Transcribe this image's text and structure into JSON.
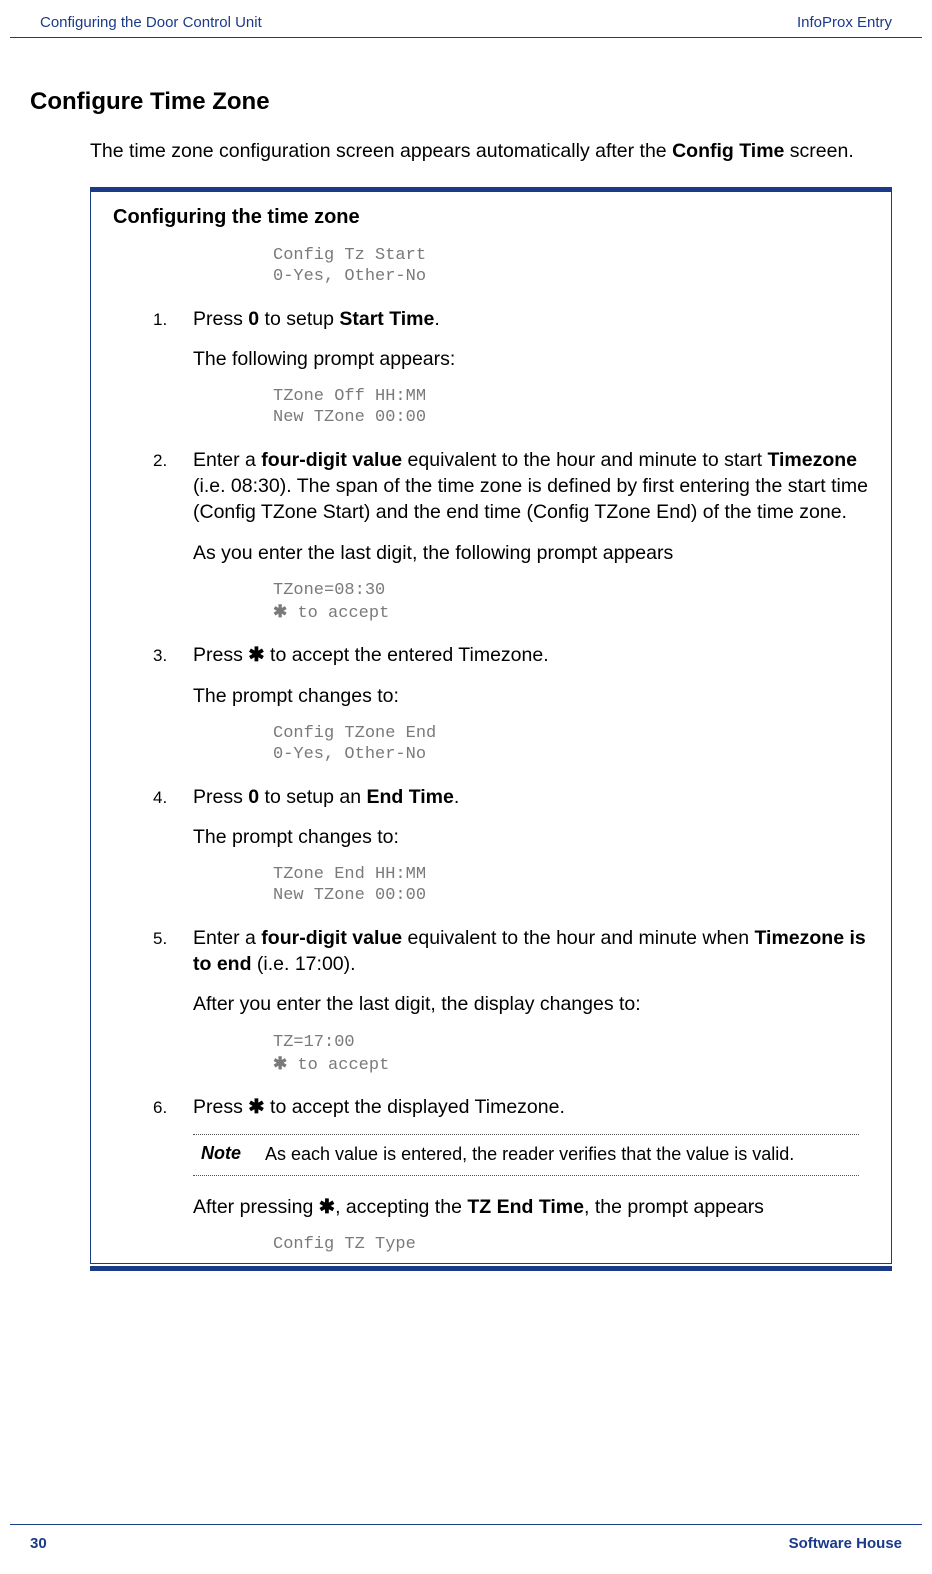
{
  "header": {
    "left": "Configuring the Door Control Unit",
    "right": "InfoProx Entry"
  },
  "heading": "Configure Time Zone",
  "intro_pre": "The time zone configuration screen appears automatically after the ",
  "intro_bold": "Config Time",
  "intro_post": " screen.",
  "box_title": "Configuring the time zone",
  "code_top_l1": "Config Tz Start",
  "code_top_l2": "0-Yes, Other-No",
  "steps": {
    "s1": {
      "num": "1.",
      "text_pre": "Press ",
      "bold1": "0",
      "text_mid": " to setup ",
      "bold2": "Start Time",
      "text_post": ".",
      "follow": "The following prompt appears:",
      "code_l1": "TZone Off HH:MM",
      "code_l2": "New TZone 00:00"
    },
    "s2": {
      "num": "2.",
      "p1_pre": "Enter a ",
      "p1_b1": "four-digit value",
      "p1_mid": " equivalent to the hour and minute to start ",
      "p1_b2": "Timezone",
      "p1_post": " (i.e. 08:30). The span of the time zone is defined by first entering the start time (Config TZone Start) and the end time (Config TZone End) of the time zone.",
      "follow": "As you enter the last digit, the following prompt appears",
      "code_l1": "TZone=08:30",
      "code_l2_post": " to accept"
    },
    "s3": {
      "num": "3.",
      "text_pre": "Press ",
      "text_post": " to accept the entered Timezone.",
      "follow": "The prompt changes to:",
      "code_l1": "Config TZone End",
      "code_l2": "0-Yes, Other-No"
    },
    "s4": {
      "num": "4.",
      "text_pre": "Press ",
      "bold1": "0",
      "text_mid": " to setup an ",
      "bold2": "End Time",
      "text_post": ".",
      "follow": "The prompt changes to:",
      "code_l1": "TZone End HH:MM",
      "code_l2": "New TZone 00:00"
    },
    "s5": {
      "num": "5.",
      "p1_pre": "Enter a ",
      "p1_b1": "four-digit value",
      "p1_mid": " equivalent to the hour and minute when ",
      "p1_b2": "Timezone is to end",
      "p1_post": " (i.e. 17:00).",
      "follow": "After you enter the last digit, the display changes to:",
      "code_l1": "TZ=17:00",
      "code_l2_post": " to accept"
    },
    "s6": {
      "num": "6.",
      "text_pre": "Press ",
      "text_post": " to accept the displayed Timezone.",
      "note_label": "Note",
      "note_text": "As each value is entered, the reader verifies that the value is valid.",
      "follow_pre": "After pressing ",
      "follow_mid": ", accepting the ",
      "follow_bold": "TZ End Time",
      "follow_post": ", the prompt appears",
      "code_l1": "Config TZ Type"
    }
  },
  "footer": {
    "page": "30",
    "right": "Software House"
  },
  "star": "✱"
}
